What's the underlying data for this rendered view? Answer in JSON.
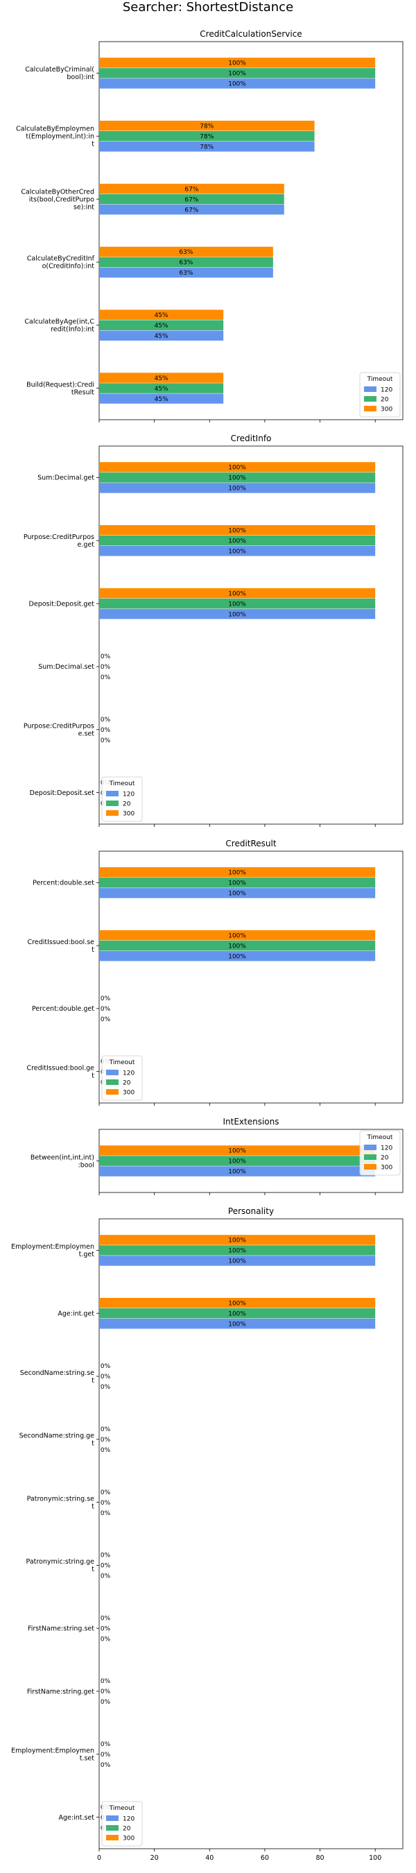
{
  "title": "Searcher: ShortestDistance",
  "legend_title": "Timeout",
  "colors": {
    "120": "#6495ed",
    "20": "#3cb371",
    "300": "#ff8c00"
  },
  "chart_data": [
    {
      "type": "bar",
      "orientation": "horizontal",
      "title": "CreditCalculationService",
      "categories": [
        "CalculateByCriminal(\nbool):int",
        "CalculateByEmploymen\nt(Employment,int):in\nt",
        "CalculateByOtherCred\nits(bool,CreditPurpo\nse):int",
        "CalculateByCreditInf\no(CreditInfo):int",
        "CalculateByAge(int,C\nredit(Info):int",
        "Build(Request):Credi\ntResult"
      ],
      "series": [
        {
          "name": "120",
          "values": [
            100,
            78,
            67,
            63,
            45,
            45
          ]
        },
        {
          "name": "20",
          "values": [
            100,
            78,
            67,
            63,
            45,
            45
          ]
        },
        {
          "name": "300",
          "values": [
            100,
            78,
            67,
            63,
            45,
            45
          ]
        }
      ],
      "labels": [
        "100%",
        "78%",
        "67%",
        "63%",
        "45%",
        "45%"
      ],
      "xlim": [
        0,
        100
      ],
      "legend": "bottom-right"
    },
    {
      "type": "bar",
      "orientation": "horizontal",
      "title": "CreditInfo",
      "categories": [
        "Sum:Decimal.get",
        "Purpose:CreditPurpos\ne.get",
        "Deposit:Deposit.get",
        "Sum:Decimal.set",
        "Purpose:CreditPurpos\ne.set",
        "Deposit:Deposit.set"
      ],
      "series": [
        {
          "name": "120",
          "values": [
            100,
            100,
            100,
            0,
            0,
            0
          ]
        },
        {
          "name": "20",
          "values": [
            100,
            100,
            100,
            0,
            0,
            0
          ]
        },
        {
          "name": "300",
          "values": [
            100,
            100,
            100,
            0,
            0,
            0
          ]
        }
      ],
      "labels": [
        "100%",
        "100%",
        "100%",
        "0%",
        "0%",
        "0%"
      ],
      "xlim": [
        0,
        100
      ],
      "legend": "bottom-left"
    },
    {
      "type": "bar",
      "orientation": "horizontal",
      "title": "CreditResult",
      "categories": [
        "Percent:double.set",
        "CreditIssued:bool.se\nt",
        "Percent:double.get",
        "CreditIssued:bool.ge\nt"
      ],
      "series": [
        {
          "name": "120",
          "values": [
            100,
            100,
            0,
            0
          ]
        },
        {
          "name": "20",
          "values": [
            100,
            100,
            0,
            0
          ]
        },
        {
          "name": "300",
          "values": [
            100,
            100,
            0,
            0
          ]
        }
      ],
      "labels": [
        "100%",
        "100%",
        "0%",
        "0%"
      ],
      "xlim": [
        0,
        100
      ],
      "legend": "bottom-left"
    },
    {
      "type": "bar",
      "orientation": "horizontal",
      "title": "IntExtensions",
      "categories": [
        "Between(int,int,int)\n:bool"
      ],
      "series": [
        {
          "name": "120",
          "values": [
            100
          ]
        },
        {
          "name": "20",
          "values": [
            100
          ]
        },
        {
          "name": "300",
          "values": [
            100
          ]
        }
      ],
      "labels": [
        "100%"
      ],
      "xlim": [
        0,
        100
      ],
      "legend": "top-right"
    },
    {
      "type": "bar",
      "orientation": "horizontal",
      "title": "Personality",
      "categories": [
        "Employment:Employmen\nt.get",
        "Age:int.get",
        "SecondName:string.se\nt",
        "SecondName:string.ge\nt",
        "Patronymic:string.se\nt",
        "Patronymic:string.ge\nt",
        "FirstName:string.set",
        "FirstName:string.get",
        "Employment:Employmen\nt.set",
        "Age:int.set"
      ],
      "series": [
        {
          "name": "120",
          "values": [
            100,
            100,
            0,
            0,
            0,
            0,
            0,
            0,
            0,
            0
          ]
        },
        {
          "name": "20",
          "values": [
            100,
            100,
            0,
            0,
            0,
            0,
            0,
            0,
            0,
            0
          ]
        },
        {
          "name": "300",
          "values": [
            100,
            100,
            0,
            0,
            0,
            0,
            0,
            0,
            0,
            0
          ]
        }
      ],
      "labels": [
        "100%",
        "100%",
        "0%",
        "0%",
        "0%",
        "0%",
        "0%",
        "0%",
        "0%",
        "0%"
      ],
      "xlim": [
        0,
        100
      ],
      "xticks": [
        0,
        20,
        40,
        60,
        80,
        100
      ],
      "legend": "bottom-left"
    }
  ]
}
